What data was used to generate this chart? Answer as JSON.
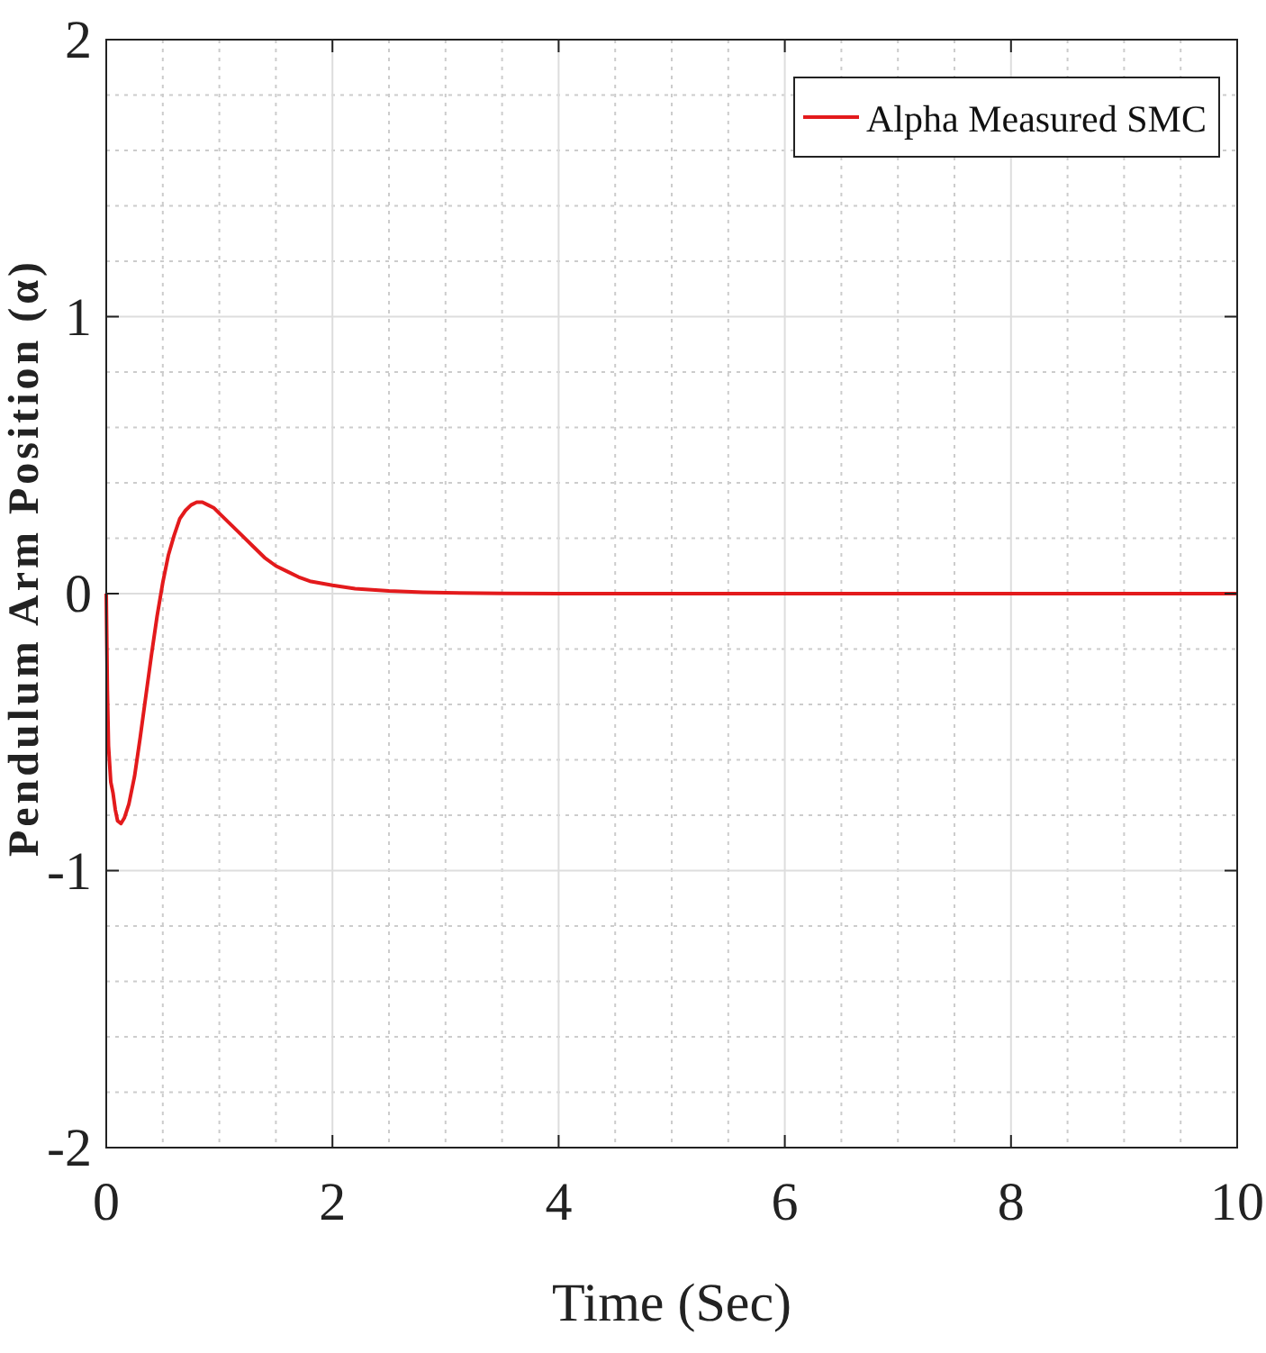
{
  "chart_data": {
    "type": "line",
    "xlabel": "Time (Sec)",
    "ylabel": "Pendulum Arm Position (α)",
    "xlim": [
      0,
      10
    ],
    "ylim": [
      -2,
      2
    ],
    "xticks": [
      0,
      2,
      4,
      6,
      8,
      10
    ],
    "yticks": [
      -2,
      -1,
      0,
      1,
      2
    ],
    "grid": true,
    "legend": "top right",
    "line_style": "solid",
    "series": [
      {
        "name": "Alpha Measured SMC",
        "color": "#e31a1c",
        "x": [
          0,
          0.01,
          0.02,
          0.04,
          0.06,
          0.08,
          0.1,
          0.13,
          0.16,
          0.2,
          0.25,
          0.3,
          0.35,
          0.4,
          0.45,
          0.5,
          0.55,
          0.6,
          0.65,
          0.7,
          0.75,
          0.8,
          0.85,
          0.9,
          0.95,
          1.0,
          1.1,
          1.2,
          1.3,
          1.4,
          1.5,
          1.6,
          1.7,
          1.8,
          2.0,
          2.2,
          2.5,
          2.8,
          3.0,
          3.5,
          4.0,
          5.0,
          6.0,
          7.0,
          8.0,
          9.0,
          10.0
        ],
        "values": [
          0,
          -0.35,
          -0.55,
          -0.68,
          -0.72,
          -0.78,
          -0.82,
          -0.83,
          -0.81,
          -0.76,
          -0.66,
          -0.52,
          -0.37,
          -0.22,
          -0.08,
          0.04,
          0.14,
          0.21,
          0.27,
          0.3,
          0.32,
          0.33,
          0.33,
          0.32,
          0.31,
          0.29,
          0.25,
          0.21,
          0.17,
          0.13,
          0.1,
          0.08,
          0.06,
          0.045,
          0.03,
          0.018,
          0.01,
          0.005,
          0.003,
          0.001,
          0,
          0,
          0,
          0,
          0,
          0,
          0
        ]
      }
    ]
  }
}
